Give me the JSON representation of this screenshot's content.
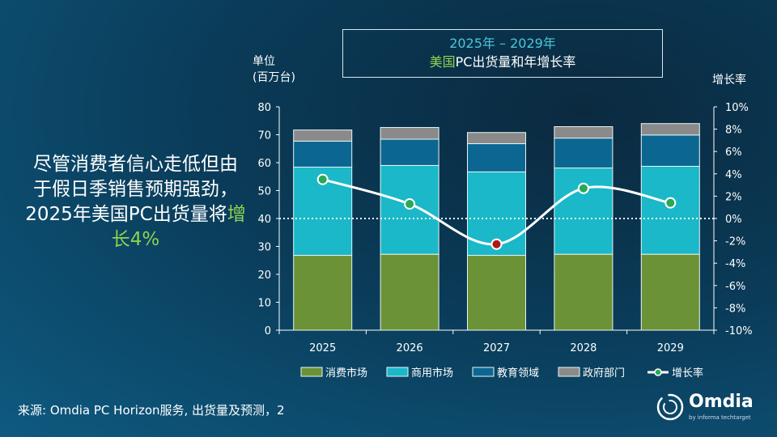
{
  "title": {
    "line1": "2025年 – 2029年",
    "line2_highlight": "美国",
    "line2_rest": "PC出货量和年增长率"
  },
  "headline": {
    "text": "尽管消费者信心走低但由于假日季销售预期强劲， 2025年美国PC出货量将",
    "highlight": "增长4%"
  },
  "footer": {
    "source": "来源: Omdia PC Horizon服务, 出货量及预测，2"
  },
  "logo": {
    "name": "Omdia",
    "tagline": "by informa techtarget"
  },
  "colors": {
    "consumer": "#6b9236",
    "commercial": "#1ab8c8",
    "education": "#0b6792",
    "government": "#8a8a8a",
    "growth_line": "#ffffff",
    "growth_pos": "#2aa85a",
    "growth_neg": "#b01818",
    "highlight": "#8fd14f"
  },
  "chart_data": {
    "type": "bar",
    "stacked": true,
    "categories": [
      "2025",
      "2026",
      "2027",
      "2028",
      "2029"
    ],
    "ylabel": "单位\n(百万台)",
    "ylabel_lines": [
      "单位",
      "(百万台)"
    ],
    "ylim": [
      0,
      80
    ],
    "yticks": [
      "0",
      "10",
      "20",
      "30",
      "40",
      "50",
      "60",
      "70",
      "80"
    ],
    "y2label": "增长率",
    "y2lim": [
      -10,
      10
    ],
    "y2ticks": [
      "-10%",
      "-8%",
      "-6%",
      "-4%",
      "-2%",
      "0%",
      "2%",
      "4%",
      "6%",
      "8%",
      "10%"
    ],
    "legend_position": "bottom",
    "series": [
      {
        "name": "消费市场",
        "values": [
          26.8,
          27.2,
          26.8,
          27.2,
          27.2
        ],
        "color": "#6b9236"
      },
      {
        "name": "商用市场",
        "values": [
          31.6,
          31.8,
          29.9,
          30.9,
          31.5
        ],
        "color": "#1ab8c8"
      },
      {
        "name": "教育领域",
        "values": [
          9.3,
          9.4,
          10.1,
          10.7,
          11.2
        ],
        "color": "#0b6792"
      },
      {
        "name": "政府部门",
        "values": [
          4.0,
          4.2,
          4.0,
          4.1,
          4.1
        ],
        "color": "#8a8a8a"
      }
    ],
    "line_series": {
      "name": "增长率",
      "axis": "right",
      "values": [
        3.5,
        1.3,
        -2.3,
        2.7,
        1.4
      ]
    }
  }
}
